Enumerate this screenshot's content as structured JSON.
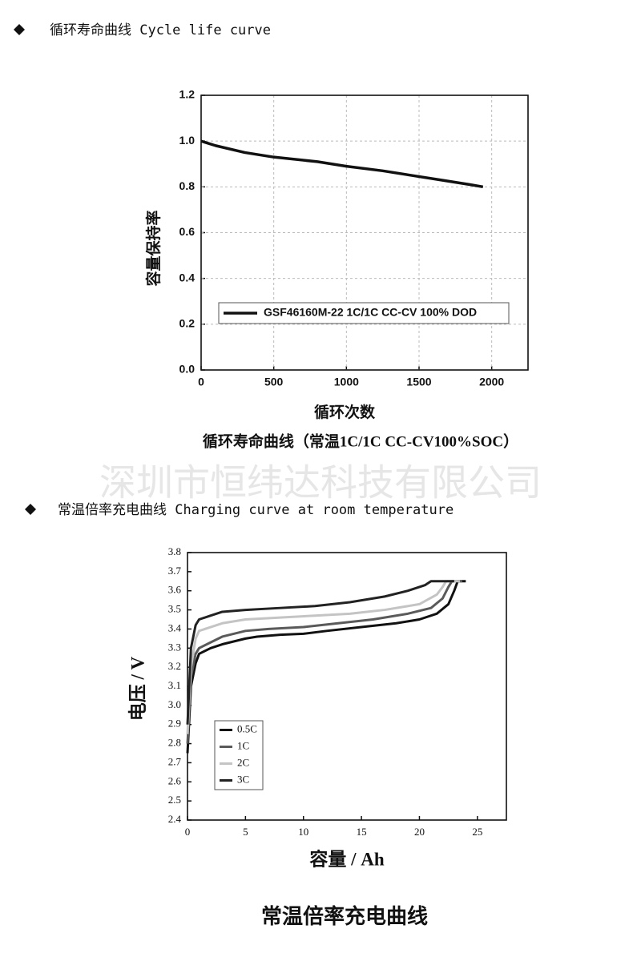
{
  "headings": [
    "循环寿命曲线 Cycle life curve",
    "常温倍率充电曲线 Charging curve at room temperature"
  ],
  "watermark": "深圳市恒纬达科技有限公司",
  "chart_data": [
    {
      "type": "line",
      "title": "循环寿命曲线（常温1C/1C CC-CV100%SOC）",
      "x_label": "循环次数",
      "y_label": "容量保持率",
      "x": [
        0,
        100,
        300,
        500,
        800,
        1000,
        1250,
        1450,
        1650,
        1850,
        1940
      ],
      "series": [
        {
          "name": "GSF46160M-22 1C/1C CC-CV 100% DOD",
          "color": "#111111",
          "values": [
            1.0,
            0.98,
            0.95,
            0.93,
            0.91,
            0.89,
            0.87,
            0.85,
            0.83,
            0.81,
            0.8
          ]
        }
      ],
      "xlim": [
        0,
        2250
      ],
      "xticks": [
        0,
        500,
        1000,
        1500,
        2000
      ],
      "ylim": [
        0,
        1.2
      ],
      "yticks": [
        {
          "value": 0,
          "label": "0.0"
        },
        0.2,
        0.4,
        0.6,
        0.8,
        {
          "value": 1,
          "label": "1.0"
        },
        1.2
      ],
      "grid": true,
      "legend": "lower center"
    },
    {
      "type": "line",
      "title": "常温倍率充电曲线",
      "x_label": "容量 / Ah",
      "y_label": "电压 / V",
      "series": [
        {
          "name": "0.5C",
          "color": "#111111",
          "x": [
            0,
            0.3,
            0.7,
            1,
            2,
            3,
            5,
            6,
            8,
            10,
            12,
            15,
            18,
            20,
            21.5,
            22.5,
            23,
            23.3,
            24
          ],
          "values": [
            2.75,
            3.1,
            3.22,
            3.27,
            3.3,
            3.32,
            3.35,
            3.36,
            3.37,
            3.375,
            3.39,
            3.41,
            3.43,
            3.45,
            3.48,
            3.53,
            3.6,
            3.65,
            3.65
          ]
        },
        {
          "name": "1C",
          "color": "#5a5a5a",
          "x": [
            0,
            0.3,
            0.7,
            1,
            2,
            3,
            5,
            7,
            10,
            13,
            16,
            19,
            21,
            22,
            22.5,
            22.8,
            23.7
          ],
          "values": [
            2.8,
            3.15,
            3.27,
            3.3,
            3.33,
            3.36,
            3.39,
            3.4,
            3.41,
            3.43,
            3.45,
            3.48,
            3.51,
            3.56,
            3.62,
            3.65,
            3.65
          ]
        },
        {
          "name": "2C",
          "color": "#c4c4c4",
          "x": [
            0,
            0.3,
            0.7,
            1,
            2,
            3,
            5,
            8,
            11,
            14,
            17,
            20,
            21.5,
            22,
            22.3,
            23.5
          ],
          "values": [
            2.85,
            3.2,
            3.35,
            3.39,
            3.41,
            3.43,
            3.45,
            3.46,
            3.47,
            3.48,
            3.5,
            3.53,
            3.58,
            3.62,
            3.65,
            3.65
          ]
        },
        {
          "name": "3C",
          "color": "#222222",
          "x": [
            0,
            0.3,
            0.7,
            1,
            2,
            3,
            5,
            8,
            11,
            14,
            17,
            19,
            20.5,
            21,
            23
          ],
          "values": [
            2.9,
            3.3,
            3.42,
            3.45,
            3.47,
            3.49,
            3.5,
            3.51,
            3.52,
            3.54,
            3.57,
            3.6,
            3.63,
            3.65,
            3.65
          ]
        }
      ],
      "xlim": [
        0,
        27.5
      ],
      "xticks": [
        0,
        5,
        10,
        15,
        20,
        25
      ],
      "ylim": [
        2.4,
        3.8
      ],
      "yticks": [
        2.4,
        2.5,
        2.6,
        2.7,
        2.8,
        2.9,
        {
          "value": 3,
          "label": "3.0"
        },
        3.1,
        3.2,
        3.3,
        3.4,
        3.5,
        3.6,
        3.7,
        3.8
      ],
      "grid": false,
      "legend": "lower left"
    }
  ]
}
